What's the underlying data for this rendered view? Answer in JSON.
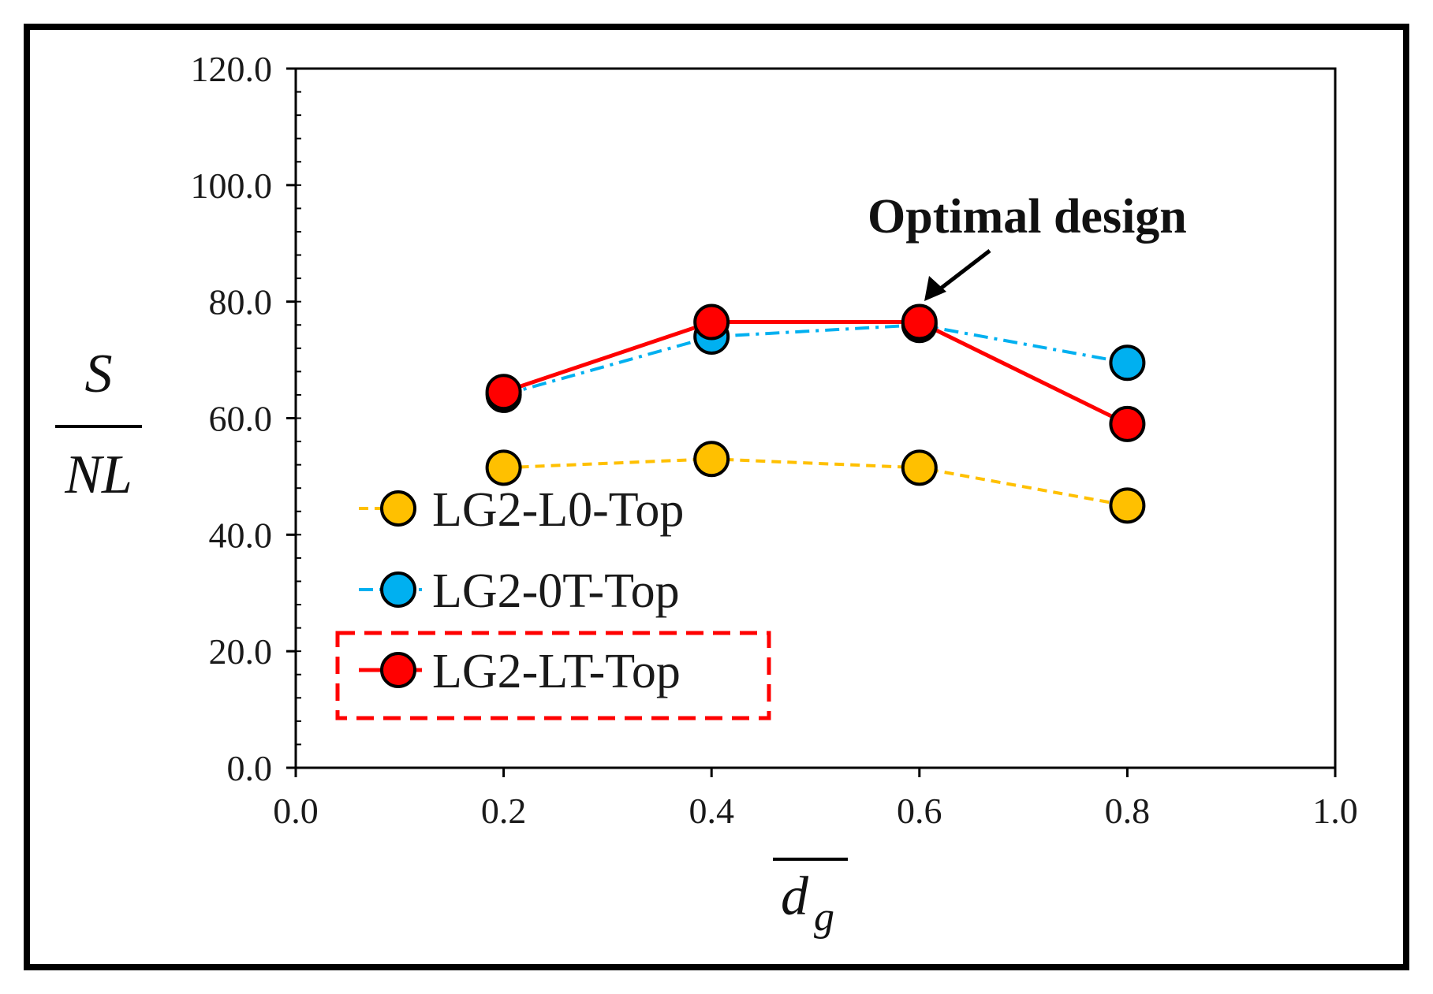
{
  "chart_data": {
    "type": "line",
    "title": "",
    "xlabel": "d_g (overlined)",
    "ylabel": "S / NL",
    "xlim": [
      0.0,
      1.0
    ],
    "ylim": [
      0.0,
      120.0
    ],
    "x_ticks": [
      0.0,
      0.2,
      0.4,
      0.6,
      0.8,
      1.0
    ],
    "x_tick_labels": [
      "0.0",
      "0.2",
      "0.4",
      "0.6",
      "0.8",
      "1.0"
    ],
    "y_ticks": [
      0,
      20,
      40,
      60,
      80,
      100,
      120
    ],
    "y_tick_labels": [
      "0.0",
      "20.0",
      "40.0",
      "60.0",
      "80.0",
      "100.0",
      "120.0"
    ],
    "x": [
      0.2,
      0.4,
      0.6,
      0.8
    ],
    "series": [
      {
        "name": "LG2-L0-Top",
        "values": [
          51.5,
          53.0,
          51.5,
          45.0
        ],
        "color": "#FFC000",
        "line_style": "dashed"
      },
      {
        "name": "LG2-0T-Top",
        "values": [
          64.0,
          74.0,
          76.0,
          69.5
        ],
        "color": "#00B0F0",
        "line_style": "dash-dot"
      },
      {
        "name": "LG2-LT-Top",
        "values": [
          64.5,
          76.5,
          76.5,
          59.0
        ],
        "color": "#FF0000",
        "line_style": "solid"
      }
    ],
    "legend_position": "lower-left",
    "highlighted_series": "LG2-LT-Top",
    "annotation": {
      "text": "Optimal design",
      "x": 0.6,
      "y": 76.5
    }
  },
  "axis_text": {
    "y_numerator": "S",
    "y_denominator": "NL",
    "x_main": "d",
    "x_sub": "g"
  }
}
